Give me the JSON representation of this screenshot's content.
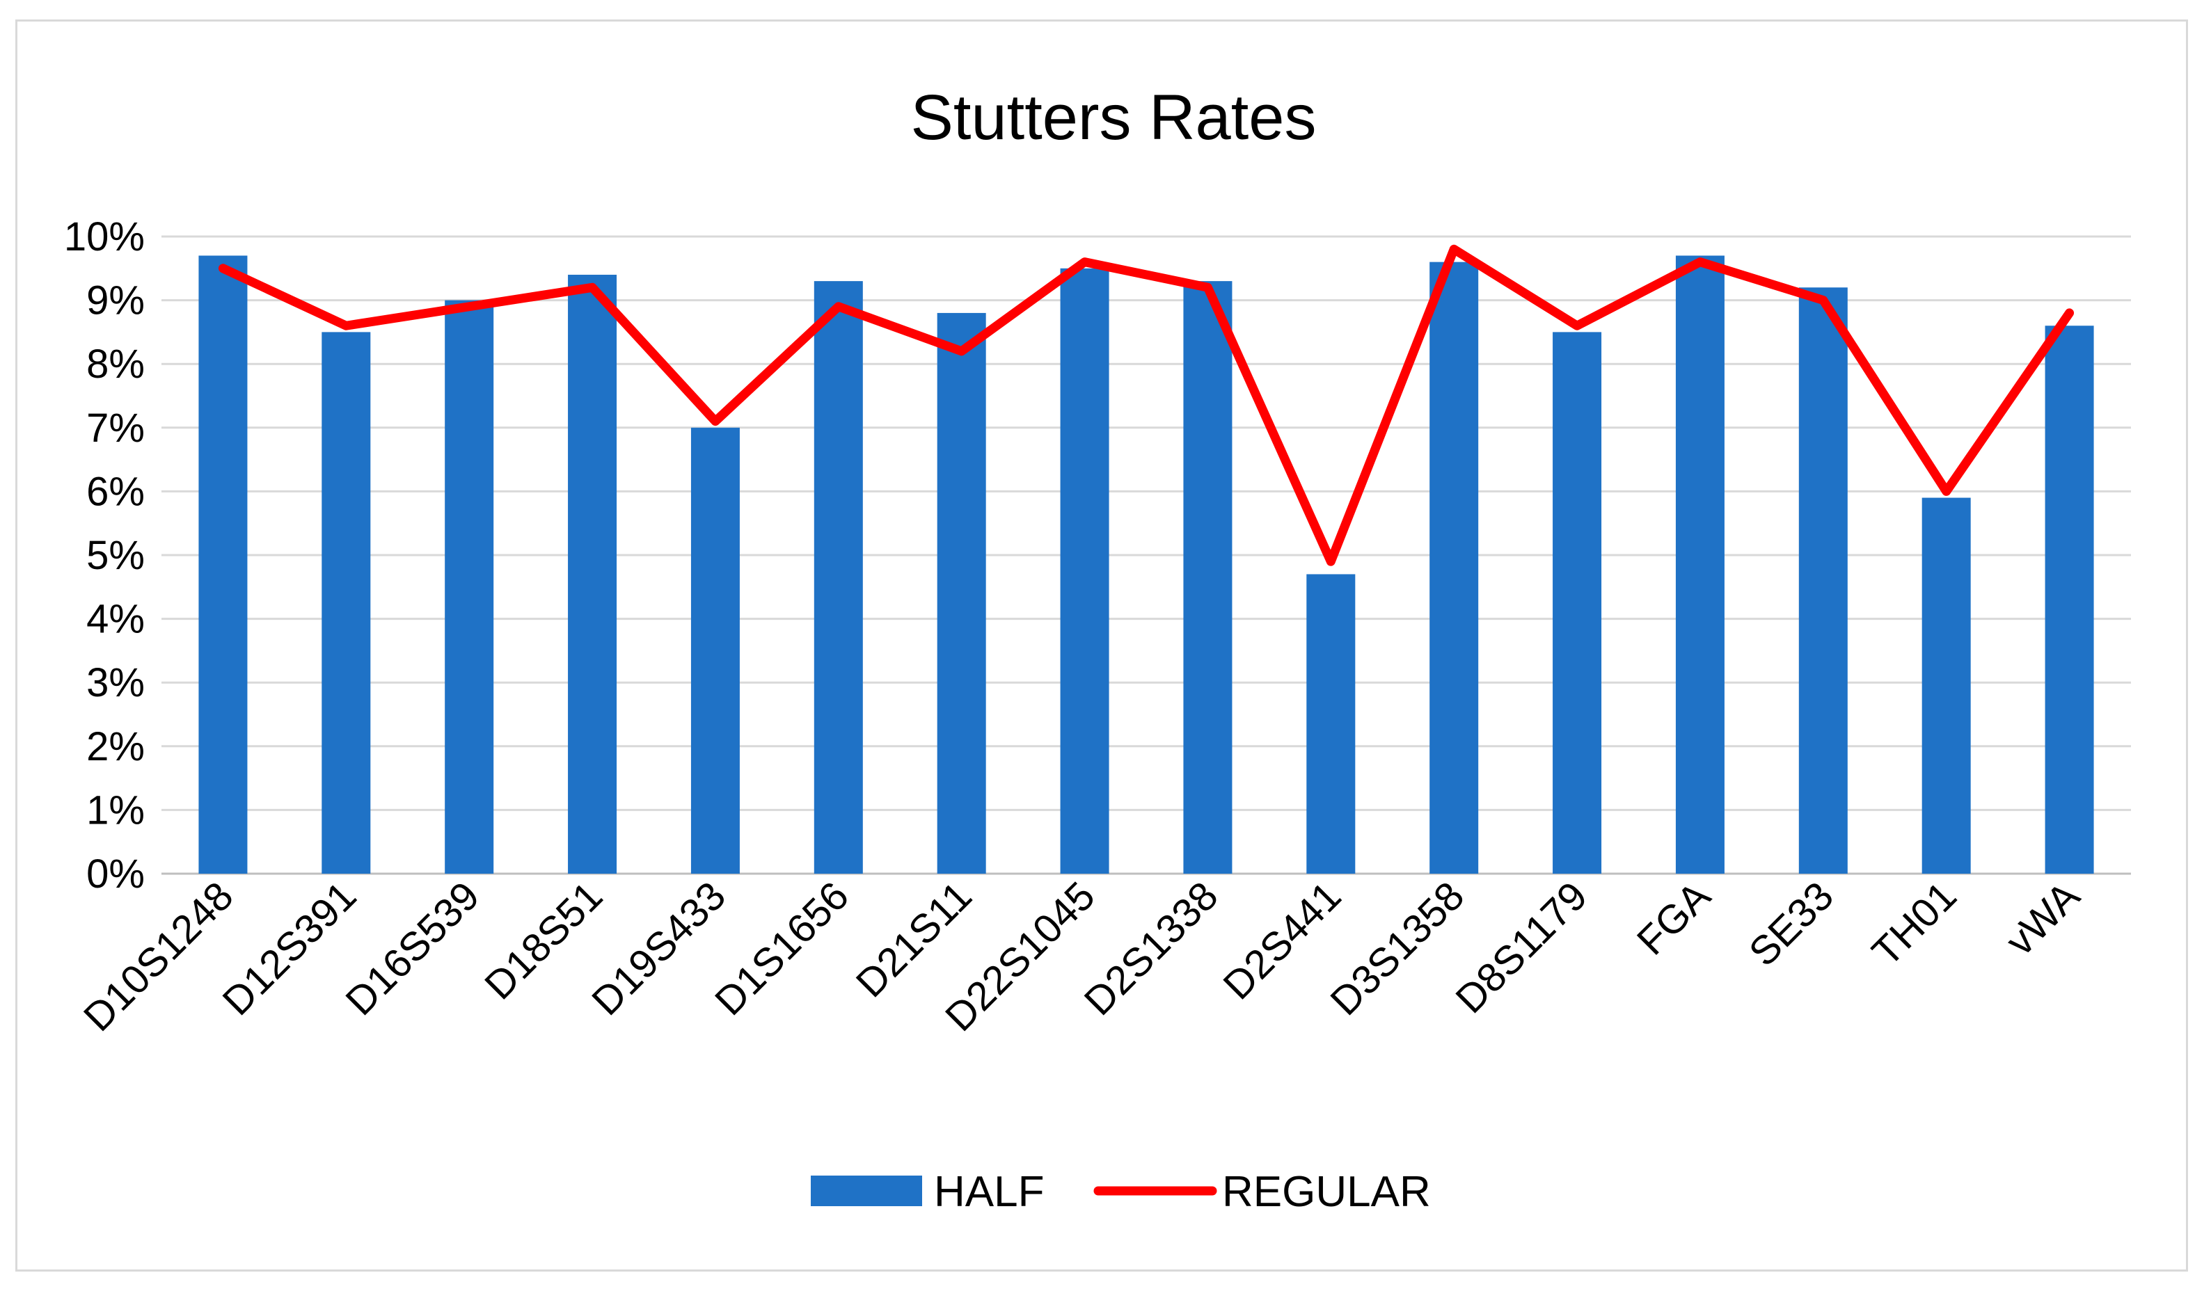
{
  "chart_data": {
    "type": "bar",
    "title": "Stutters Rates",
    "categories": [
      "D10S1248",
      "D12S391",
      "D16S539",
      "D18S51",
      "D19S433",
      "D1S1656",
      "D21S11",
      "D22S1045",
      "D2S1338",
      "D2S441",
      "D3S1358",
      "D8S1179",
      "FGA",
      "SE33",
      "TH01",
      "vWA"
    ],
    "series": [
      {
        "name": "HALF",
        "type": "bar",
        "color": "#1f72c6",
        "values": [
          9.7,
          8.5,
          9.0,
          9.4,
          7.0,
          9.3,
          8.8,
          9.5,
          9.3,
          4.7,
          9.6,
          8.5,
          9.7,
          9.2,
          5.9,
          8.6
        ]
      },
      {
        "name": "REGULAR",
        "type": "line",
        "color": "#ff0000",
        "values": [
          9.5,
          8.6,
          8.9,
          9.2,
          7.1,
          8.9,
          8.2,
          9.6,
          9.2,
          4.9,
          9.8,
          8.6,
          9.6,
          9.0,
          6.0,
          8.8
        ]
      }
    ],
    "ylim": [
      0,
      10
    ],
    "yticks": [
      {
        "value": 0,
        "label": "0%"
      },
      {
        "value": 1,
        "label": "1%"
      },
      {
        "value": 2,
        "label": "2%"
      },
      {
        "value": 3,
        "label": "3%"
      },
      {
        "value": 4,
        "label": "4%"
      },
      {
        "value": 5,
        "label": "5%"
      },
      {
        "value": 6,
        "label": "6%"
      },
      {
        "value": 7,
        "label": "7%"
      },
      {
        "value": 8,
        "label": "8%"
      },
      {
        "value": 9,
        "label": "9%"
      },
      {
        "value": 10,
        "label": "10%"
      }
    ],
    "grid": true,
    "legend_position": "bottom"
  }
}
